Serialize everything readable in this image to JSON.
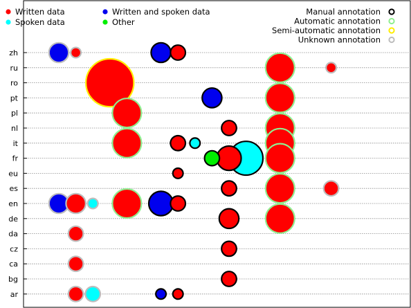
{
  "chart_data": {
    "type": "scatter",
    "categories": [
      "zh",
      "ru",
      "ro",
      "pt",
      "pl",
      "nl",
      "it",
      "fr",
      "eu",
      "es",
      "en",
      "de",
      "da",
      "cz",
      "ca",
      "bg",
      "ar"
    ],
    "legend": {
      "data_types": [
        {
          "label": "Written data",
          "color": "#ff0000"
        },
        {
          "label": "Written and spoken data",
          "color": "#0000ee"
        },
        {
          "label": "Spoken data",
          "color": "#00ffff"
        },
        {
          "label": "Other",
          "color": "#00ee00"
        }
      ],
      "annotation_types": [
        {
          "label": "Manual annotation",
          "color": "#000000"
        },
        {
          "label": "Automatic annotation",
          "color": "#90ee90"
        },
        {
          "label": "Semi-automatic annotation",
          "color": "#ffee00"
        },
        {
          "label": "Unknown annotation",
          "color": "#bdbdbd"
        }
      ]
    },
    "points": [
      {
        "lang": "zh",
        "col": 1,
        "size": 3,
        "type": "written-spoken",
        "annotation": "unknown"
      },
      {
        "lang": "zh",
        "col": 2,
        "size": 1,
        "type": "written",
        "annotation": "unknown"
      },
      {
        "lang": "zh",
        "col": 7,
        "size": 3,
        "type": "written-spoken",
        "annotation": "manual"
      },
      {
        "lang": "zh",
        "col": 8,
        "size": 2,
        "type": "written",
        "annotation": "manual"
      },
      {
        "lang": "ru",
        "col": 14,
        "size": 5,
        "type": "written",
        "annotation": "automatic"
      },
      {
        "lang": "ru",
        "col": 17,
        "size": 1,
        "type": "written",
        "annotation": "unknown"
      },
      {
        "lang": "ro",
        "col": 4,
        "size": 9,
        "type": "written",
        "annotation": "semi-automatic"
      },
      {
        "lang": "pt",
        "col": 10,
        "size": 3,
        "type": "written-spoken",
        "annotation": "manual"
      },
      {
        "lang": "pt",
        "col": 14,
        "size": 5,
        "type": "written",
        "annotation": "automatic"
      },
      {
        "lang": "pl",
        "col": 5,
        "size": 5,
        "type": "written",
        "annotation": "automatic"
      },
      {
        "lang": "nl",
        "col": 11,
        "size": 2,
        "type": "written",
        "annotation": "manual"
      },
      {
        "lang": "nl",
        "col": 14,
        "size": 5,
        "type": "written",
        "annotation": "automatic"
      },
      {
        "lang": "it",
        "col": 5,
        "size": 5,
        "type": "written",
        "annotation": "automatic"
      },
      {
        "lang": "it",
        "col": 8,
        "size": 2,
        "type": "written",
        "annotation": "manual"
      },
      {
        "lang": "it",
        "col": 9,
        "size": 1,
        "type": "spoken",
        "annotation": "manual"
      },
      {
        "lang": "it",
        "col": 14,
        "size": 5,
        "type": "written",
        "annotation": "automatic"
      },
      {
        "lang": "fr",
        "col": 10,
        "size": 2,
        "type": "other",
        "annotation": "manual"
      },
      {
        "lang": "fr",
        "col": 11,
        "size": 4,
        "type": "written",
        "annotation": "manual"
      },
      {
        "lang": "fr",
        "col": 12,
        "size": 6,
        "type": "spoken",
        "annotation": "manual"
      },
      {
        "lang": "fr",
        "col": 14,
        "size": 5,
        "type": "written",
        "annotation": "automatic"
      },
      {
        "lang": "eu",
        "col": 8,
        "size": 1,
        "type": "written",
        "annotation": "manual"
      },
      {
        "lang": "es",
        "col": 11,
        "size": 2,
        "type": "written",
        "annotation": "manual"
      },
      {
        "lang": "es",
        "col": 14,
        "size": 5,
        "type": "written",
        "annotation": "automatic"
      },
      {
        "lang": "es",
        "col": 17,
        "size": 2,
        "type": "written",
        "annotation": "unknown"
      },
      {
        "lang": "en",
        "col": 1,
        "size": 3,
        "type": "written-spoken",
        "annotation": "unknown"
      },
      {
        "lang": "en",
        "col": 2,
        "size": 3,
        "type": "written",
        "annotation": "unknown"
      },
      {
        "lang": "en",
        "col": 3,
        "size": 1,
        "type": "spoken",
        "annotation": "unknown"
      },
      {
        "lang": "en",
        "col": 5,
        "size": 5,
        "type": "written",
        "annotation": "automatic"
      },
      {
        "lang": "en",
        "col": 7,
        "size": 4,
        "type": "written-spoken",
        "annotation": "manual"
      },
      {
        "lang": "en",
        "col": 8,
        "size": 2,
        "type": "written",
        "annotation": "manual"
      },
      {
        "lang": "de",
        "col": 11,
        "size": 3,
        "type": "written",
        "annotation": "manual"
      },
      {
        "lang": "de",
        "col": 14,
        "size": 5,
        "type": "written",
        "annotation": "automatic"
      },
      {
        "lang": "da",
        "col": 2,
        "size": 2,
        "type": "written",
        "annotation": "unknown"
      },
      {
        "lang": "cz",
        "col": 11,
        "size": 2,
        "type": "written",
        "annotation": "manual"
      },
      {
        "lang": "ca",
        "col": 2,
        "size": 2,
        "type": "written",
        "annotation": "unknown"
      },
      {
        "lang": "bg",
        "col": 11,
        "size": 2,
        "type": "written",
        "annotation": "manual"
      },
      {
        "lang": "ar",
        "col": 2,
        "size": 2,
        "type": "written",
        "annotation": "unknown"
      },
      {
        "lang": "ar",
        "col": 3,
        "size": 2,
        "type": "spoken",
        "annotation": "unknown"
      },
      {
        "lang": "ar",
        "col": 7,
        "size": 1,
        "type": "written-spoken",
        "annotation": "manual"
      },
      {
        "lang": "ar",
        "col": 8,
        "size": 1,
        "type": "written",
        "annotation": "manual"
      }
    ],
    "grid": "horizontal",
    "legend_position": "top"
  }
}
